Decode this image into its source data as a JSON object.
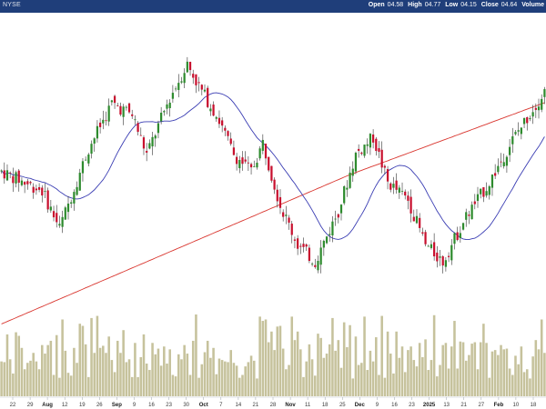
{
  "header": {
    "symbol_label": "NYSE",
    "open_label": "Open",
    "open_value": "04.58",
    "high_label": "High",
    "high_value": "04.77",
    "low_label": "Low",
    "low_value": "04.15",
    "close_label": "Close",
    "close_value": "04.64",
    "volume_label": "Volume"
  },
  "colors": {
    "up": "#2e8b2e",
    "down": "#c8102e",
    "volume": "#c6c29c",
    "ma_short": "#3a3db3",
    "ma_long": "#d9362f",
    "header_bg": "#1f3e7a"
  },
  "chart_data": {
    "type": "candlestick",
    "x_ticks": [
      {
        "label": "22",
        "bold": false
      },
      {
        "label": "29",
        "bold": false
      },
      {
        "label": "Aug",
        "bold": true
      },
      {
        "label": "12",
        "bold": false
      },
      {
        "label": "19",
        "bold": false
      },
      {
        "label": "26",
        "bold": false
      },
      {
        "label": "Sep",
        "bold": true
      },
      {
        "label": "9",
        "bold": false
      },
      {
        "label": "16",
        "bold": false
      },
      {
        "label": "23",
        "bold": false
      },
      {
        "label": "30",
        "bold": false
      },
      {
        "label": "Oct",
        "bold": true
      },
      {
        "label": "7",
        "bold": false
      },
      {
        "label": "14",
        "bold": false
      },
      {
        "label": "21",
        "bold": false
      },
      {
        "label": "28",
        "bold": false
      },
      {
        "label": "Nov",
        "bold": true
      },
      {
        "label": "11",
        "bold": false
      },
      {
        "label": "18",
        "bold": false
      },
      {
        "label": "25",
        "bold": false
      },
      {
        "label": "Dec",
        "bold": true
      },
      {
        "label": "9",
        "bold": false
      },
      {
        "label": "16",
        "bold": false
      },
      {
        "label": "23",
        "bold": false
      },
      {
        "label": "2025",
        "bold": true
      },
      {
        "label": "13",
        "bold": false
      },
      {
        "label": "21",
        "bold": false
      },
      {
        "label": "27",
        "bold": false
      },
      {
        "label": "Feb",
        "bold": true
      },
      {
        "label": "10",
        "bold": false
      },
      {
        "label": "18",
        "bold": false
      }
    ],
    "candles": [],
    "volume": [],
    "ma_short": [],
    "ma_long": []
  }
}
